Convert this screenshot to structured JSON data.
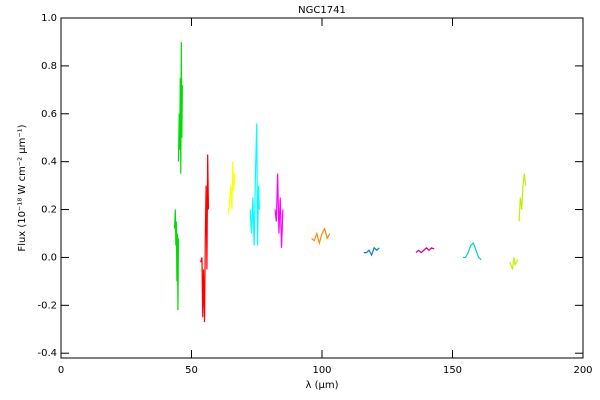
{
  "chart_data": {
    "type": "line",
    "title": "NGC1741",
    "x_label": "λ (μm)",
    "y_label": "Flux (10⁻¹⁸ W cm⁻² μm⁻¹)",
    "xlim": [
      0,
      200
    ],
    "xticks": [
      0,
      50,
      100,
      150,
      200
    ],
    "ylim": [
      -0.42,
      1.0
    ],
    "yticks": [
      -0.4,
      -0.2,
      {
        "value": 0,
        "label": "0.0"
      },
      0.2,
      0.4,
      0.6,
      0.8,
      {
        "value": 1,
        "label": "1.0"
      }
    ],
    "series": [
      {
        "color": "#00dd00",
        "x": [
          43.5,
          43.8,
          44,
          44.2,
          44.4,
          44.6,
          44.8,
          45
        ],
        "values": [
          0.12,
          0.2,
          0.05,
          0.15,
          -0.1,
          0.1,
          -0.22,
          0.08
        ]
      },
      {
        "color": "#00dd00",
        "x": [
          45,
          45.3,
          45.5,
          45.7,
          45.9,
          46.1,
          46.3,
          46.5
        ],
        "values": [
          0.4,
          0.6,
          0.45,
          0.75,
          0.35,
          0.9,
          0.5,
          0.72
        ]
      },
      {
        "color": "#ff0000",
        "x": [
          53.5,
          54,
          54.3,
          54.6,
          55,
          55.3,
          55.6,
          55.9,
          56.2,
          56.5
        ],
        "values": [
          -0.02,
          0.0,
          -0.25,
          -0.05,
          -0.27,
          0.1,
          0.3,
          -0.05,
          0.43,
          0.2
        ]
      },
      {
        "color": "#ffff00",
        "x": [
          64,
          64.5,
          65,
          65.5,
          65.8,
          66.2,
          66.6
        ],
        "values": [
          0.18,
          0.22,
          0.3,
          0.2,
          0.4,
          0.28,
          0.35
        ]
      },
      {
        "color": "#00ffff",
        "x": [
          72.5,
          73,
          73.5,
          74,
          74.5,
          75,
          75.3,
          75.7,
          76
        ],
        "values": [
          0.2,
          0.1,
          0.25,
          0.05,
          0.35,
          0.56,
          0.05,
          0.3,
          0.2
        ]
      },
      {
        "color": "#ff00ff",
        "x": [
          82,
          82.5,
          83,
          83.5,
          84,
          84.5,
          85
        ],
        "values": [
          0.2,
          0.15,
          0.35,
          0.1,
          0.25,
          0.04,
          0.2
        ]
      },
      {
        "color": "#ff8c00",
        "x": [
          96,
          97,
          98,
          99,
          100,
          101,
          102,
          103
        ],
        "values": [
          0.08,
          0.07,
          0.1,
          0.06,
          0.1,
          0.12,
          0.08,
          0.1
        ]
      },
      {
        "color": "#0080e0",
        "x": [
          116,
          117,
          118,
          119,
          120,
          121,
          122
        ],
        "values": [
          0.02,
          0.02,
          0.03,
          0.01,
          0.04,
          0.03,
          0.04
        ]
      },
      {
        "color": "#d0008c",
        "x": [
          136,
          137,
          138,
          139,
          140,
          141,
          142,
          143
        ],
        "values": [
          0.02,
          0.03,
          0.02,
          0.03,
          0.04,
          0.03,
          0.04,
          0.035
        ]
      },
      {
        "color": "#00d0d0",
        "x": [
          154,
          155,
          156,
          157,
          158,
          159,
          160,
          161
        ],
        "values": [
          0.0,
          0.0,
          0.02,
          0.05,
          0.06,
          0.03,
          0.0,
          -0.01
        ]
      },
      {
        "color": "#c0f000",
        "x": [
          172,
          173,
          173.5,
          174,
          175
        ],
        "values": [
          -0.02,
          -0.05,
          0.0,
          -0.03,
          -0.01
        ]
      },
      {
        "color": "#c0f000",
        "x": [
          175.5,
          176,
          176.5,
          177,
          177.5,
          178
        ],
        "values": [
          0.15,
          0.25,
          0.2,
          0.3,
          0.35,
          0.3
        ]
      }
    ]
  }
}
